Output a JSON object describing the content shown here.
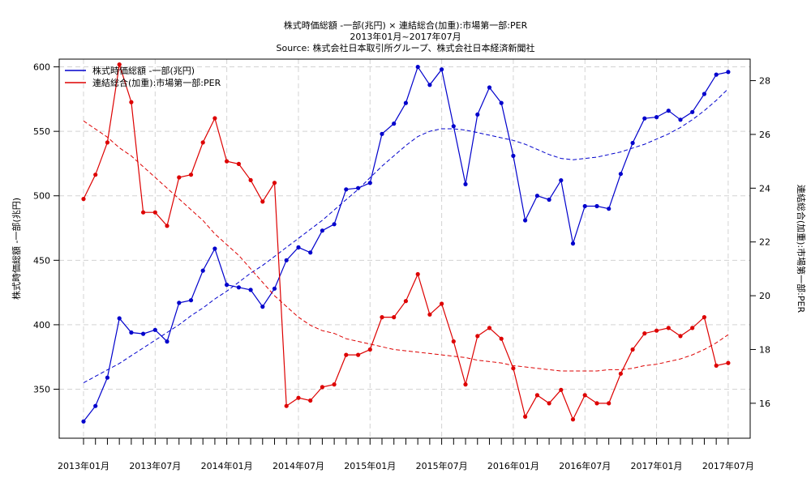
{
  "chart_data": {
    "type": "line",
    "title_lines": [
      "株式時価総額 -一部(兆円) × 連結総合(加重):市場第一部:PER",
      "2013年01月~2017年07月",
      "Source: 株式会社日本取引所グループ、株式会社日本経済新聞社"
    ],
    "ylabel_left": "株式時価総額 -一部(兆円)",
    "ylabel_right": "連結総合(加重):市場第一部:PER",
    "x_tick_labels": [
      "2013年01月",
      "2013年07月",
      "2014年01月",
      "2014年07月",
      "2015年01月",
      "2015年07月",
      "2016年01月",
      "2016年07月",
      "2017年01月",
      "2017年07月"
    ],
    "x_tick_indices": [
      0,
      6,
      12,
      18,
      24,
      30,
      36,
      42,
      48,
      54
    ],
    "n_points": 55,
    "y_left": {
      "lim": [
        312,
        606
      ],
      "ticks": [
        350,
        400,
        450,
        500,
        550,
        600
      ]
    },
    "y_right": {
      "lim": [
        14.7,
        28.8
      ],
      "ticks": [
        16,
        18,
        20,
        22,
        24,
        26,
        28
      ]
    },
    "grid": true,
    "legend_position": "top-left",
    "series": [
      {
        "name": "株式時価総額 -一部(兆円)",
        "axis": "left",
        "color": "#0000cc",
        "values": [
          325,
          337,
          359,
          405,
          394,
          393,
          396,
          387,
          417,
          419,
          442,
          459,
          431,
          429,
          427,
          414,
          428,
          450,
          460,
          456,
          473,
          478,
          505,
          506,
          510,
          548,
          556,
          572,
          600,
          586,
          598,
          554,
          509,
          563,
          584,
          572,
          531,
          481,
          500,
          497,
          512,
          463,
          492,
          492,
          490,
          517,
          541,
          560,
          561,
          566,
          559,
          565,
          579,
          594,
          596
        ],
        "trend": [
          355,
          360,
          365,
          370,
          376,
          382,
          388,
          394,
          400,
          407,
          413,
          420,
          426,
          433,
          440,
          446,
          453,
          460,
          467,
          474,
          481,
          489,
          497,
          505,
          514,
          523,
          531,
          539,
          546,
          550,
          552,
          552,
          551,
          549,
          547,
          545,
          543,
          540,
          536,
          532,
          529,
          528,
          529,
          530,
          532,
          534,
          537,
          540,
          544,
          548,
          553,
          559,
          566,
          574,
          583
        ]
      },
      {
        "name": "連結総合(加重):市場第一部:PER",
        "axis": "right",
        "color": "#dd0000",
        "values": [
          23.6,
          24.5,
          25.7,
          28.6,
          27.2,
          23.1,
          23.1,
          22.6,
          24.4,
          24.5,
          25.7,
          26.6,
          25.0,
          24.9,
          24.3,
          23.5,
          24.2,
          15.9,
          16.2,
          16.1,
          16.6,
          16.7,
          17.8,
          17.8,
          18.0,
          19.2,
          19.2,
          19.8,
          20.8,
          19.3,
          19.7,
          18.3,
          16.7,
          18.5,
          18.8,
          18.4,
          17.3,
          15.5,
          16.3,
          16.0,
          16.5,
          15.4,
          16.3,
          16.0,
          16.0,
          17.1,
          18.0,
          18.6,
          18.7,
          18.8,
          18.5,
          18.8,
          19.2,
          17.4,
          17.5
        ],
        "trend": [
          26.5,
          26.2,
          25.9,
          25.5,
          25.2,
          24.8,
          24.4,
          24.0,
          23.6,
          23.2,
          22.8,
          22.3,
          21.9,
          21.5,
          21.0,
          20.5,
          20.0,
          19.6,
          19.2,
          18.9,
          18.7,
          18.6,
          18.4,
          18.3,
          18.2,
          18.1,
          18.0,
          17.95,
          17.9,
          17.85,
          17.8,
          17.75,
          17.7,
          17.6,
          17.55,
          17.5,
          17.4,
          17.35,
          17.3,
          17.25,
          17.2,
          17.2,
          17.2,
          17.2,
          17.25,
          17.25,
          17.3,
          17.4,
          17.45,
          17.55,
          17.65,
          17.8,
          18.0,
          18.25,
          18.55
        ]
      }
    ]
  }
}
